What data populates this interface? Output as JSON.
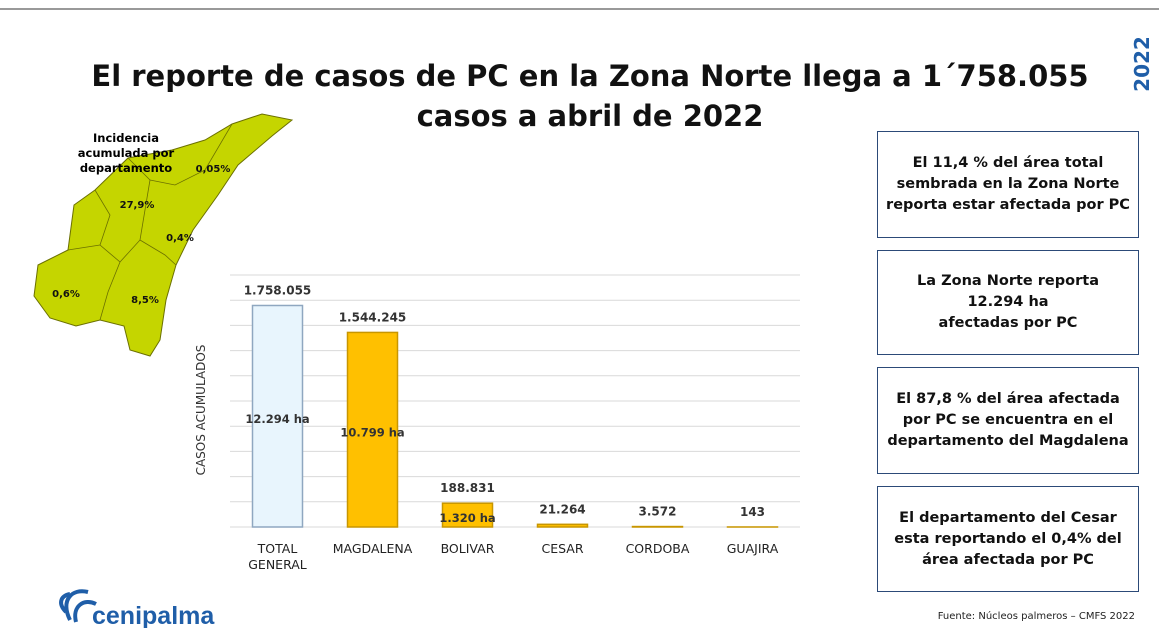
{
  "chart_data": {
    "type": "bar",
    "title": "El reporte de casos de PC en la Zona Norte llega a 1´758.055 casos a abril de 2022",
    "y_label": "CASOS ACUMULADOS",
    "categories": [
      "TOTAL GENERAL",
      "MAGDALENA",
      "BOLIVAR",
      "CESAR",
      "CORDOBA",
      "GUAJIRA"
    ],
    "values": [
      1758055,
      1544245,
      188831,
      21264,
      3572,
      143
    ],
    "value_labels": [
      "1.758.055",
      "1.544.245",
      "188.831",
      "21.264",
      "3.572",
      "143"
    ],
    "bar_annotations": [
      "12.294 ha",
      "10.799 ha",
      "1.320 ha"
    ],
    "colors": [
      "#e8f5fd",
      "#ffc000",
      "#ffc000",
      "#ffc000",
      "#ffc000",
      "#ffc000"
    ],
    "ylim": [
      0,
      2000000
    ],
    "yticks": [
      0,
      200000,
      400000,
      600000,
      800000,
      1000000,
      1200000,
      1400000,
      1600000,
      1800000,
      2000000
    ],
    "grid": true
  },
  "year_tag": "2022",
  "map": {
    "heading": "Incidencia acumulada por departamento",
    "labels": [
      "0,05%",
      "27,9%",
      "0,4%",
      "0,6%",
      "8,5%"
    ]
  },
  "boxes": [
    [
      "El 11,4 % del área total",
      "sembrada en la Zona Norte",
      "reporta estar afectada por PC"
    ],
    [
      "La Zona Norte reporta",
      "12.294 ha",
      "afectadas por PC"
    ],
    [
      "El 87,8 % del área afectada",
      "por PC se encuentra en el",
      "departamento del Magdalena"
    ],
    [
      "El departamento del Cesar",
      "esta reportando el 0,4% del",
      "área afectada por PC"
    ]
  ],
  "source": "Fuente: Núcleos palmeros – CMFS 2022",
  "logo": "cenipalma"
}
